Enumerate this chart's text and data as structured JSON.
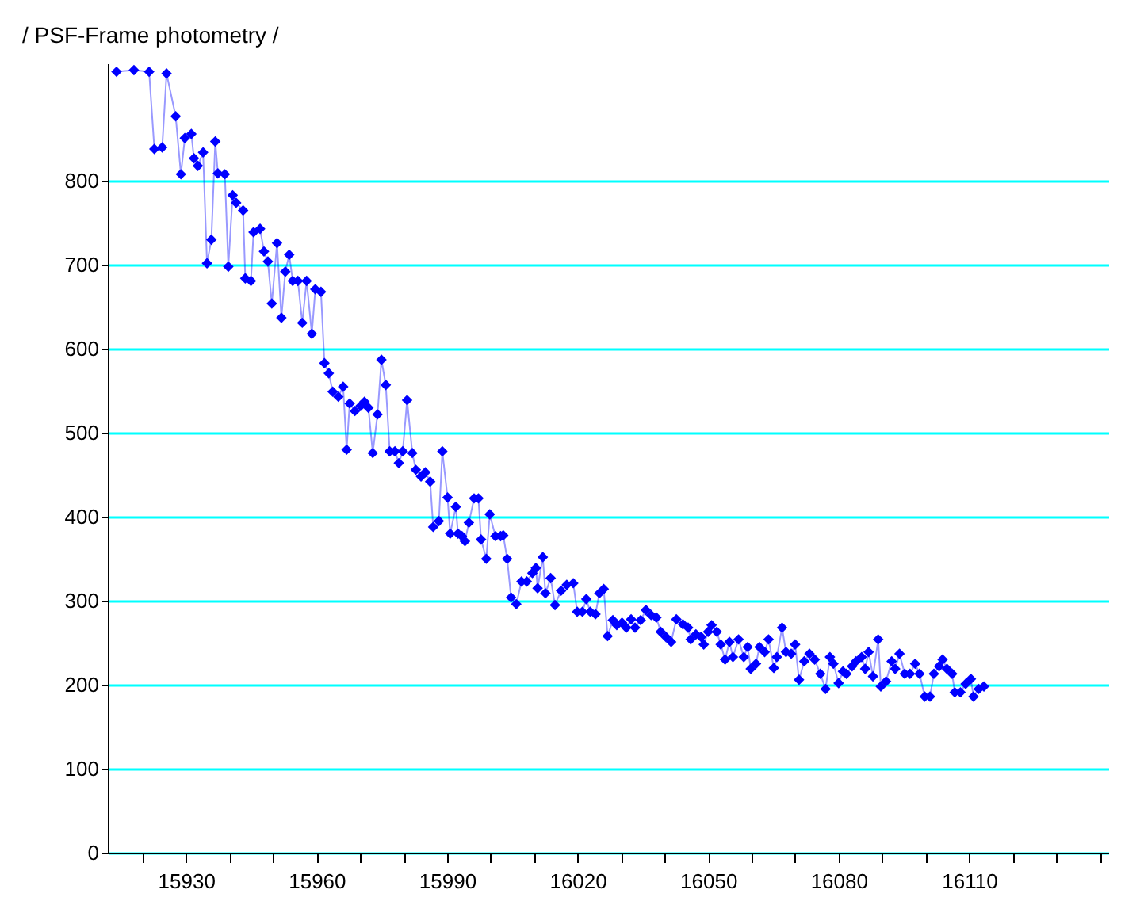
{
  "chart_data": {
    "type": "line",
    "title": "/ PSF-Frame photometry /",
    "xlim": [
      15912,
      16142
    ],
    "ylim": [
      0,
      940
    ],
    "xticks": [
      {
        "value": 15920,
        "label": null
      },
      15930,
      {
        "value": 15940,
        "label": null
      },
      {
        "value": 15950,
        "label": null
      },
      15960,
      {
        "value": 15970,
        "label": null
      },
      {
        "value": 15980,
        "label": null
      },
      15990,
      {
        "value": 16000,
        "label": null
      },
      {
        "value": 16010,
        "label": null
      },
      16020,
      {
        "value": 16030,
        "label": null
      },
      {
        "value": 16040,
        "label": null
      },
      16050,
      {
        "value": 16060,
        "label": null
      },
      {
        "value": 16070,
        "label": null
      },
      16080,
      {
        "value": 16090,
        "label": null
      },
      {
        "value": 16100,
        "label": null
      },
      16110,
      {
        "value": 16120,
        "label": null
      },
      {
        "value": 16130,
        "label": null
      },
      {
        "value": 16140,
        "label": null
      }
    ],
    "yticks": [
      0,
      100,
      200,
      300,
      400,
      500,
      600,
      700,
      800
    ],
    "grid": "y",
    "marker": "diamond",
    "line_style": "solid",
    "x": [
      15914,
      15918,
      15921.5,
      15922.7,
      15924.5,
      15925.5,
      15927.6,
      15928.8,
      15929.7,
      15931.2,
      15931.8,
      15932.7,
      15933.9,
      15934.8,
      15935.8,
      15936.7,
      15937.3,
      15938.9,
      15939.7,
      15940.7,
      15941.5,
      15943.1,
      15943.6,
      15944.9,
      15945.5,
      15947,
      15947.9,
      15948.8,
      15949.7,
      15950.9,
      15951.9,
      15952.8,
      15953.7,
      15954.5,
      15955.7,
      15956.7,
      15957.7,
      15958.9,
      15959.7,
      15961,
      15961.8,
      15962.8,
      15963.7,
      15965,
      15966.1,
      15966.9,
      15967.6,
      15968.8,
      15970.1,
      15971,
      15971.9,
      15972.9,
      15974,
      15974.9,
      15975.9,
      15976.8,
      15978,
      15978.9,
      15979.8,
      15980.8,
      15982,
      15982.8,
      15984,
      15985,
      15986.1,
      15986.8,
      15988.1,
      15988.9,
      15990.1,
      15990.7,
      15992,
      15992.5,
      15993.4,
      15994.1,
      15995,
      15996.2,
      15997.2,
      15997.8,
      15999,
      15999.8,
      16001.1,
      16002.3,
      16002.9,
      16003.8,
      16004.7,
      16005.9,
      16007.1,
      16008.3,
      16009.6,
      16010.4,
      16010.8,
      16012,
      16012.6,
      16013.8,
      16014.8,
      16016.2,
      16017.5,
      16019,
      16019.9,
      16021.1,
      16022,
      16022.9,
      16024.1,
      16025,
      16026,
      16026.9,
      16028.1,
      16029,
      16030.2,
      16031.2,
      16032.3,
      16033.2,
      16034.5,
      16035.7,
      16036.9,
      16038.1,
      16039.1,
      16040.3,
      16041.5,
      16042.7,
      16044.2,
      16045.4,
      16046,
      16047.2,
      16048.4,
      16049,
      16050,
      16050.8,
      16052,
      16052.9,
      16053.9,
      16054.9,
      16055.7,
      16057,
      16058.2,
      16059.1,
      16059.8,
      16061,
      16061.8,
      16063,
      16063.9,
      16065.1,
      16065.8,
      16067,
      16067.9,
      16069.1,
      16070,
      16070.9,
      16072.1,
      16073.3,
      16074.5,
      16075.8,
      16077,
      16078,
      16078.8,
      16080,
      16081,
      16081.8,
      16083.1,
      16084,
      16085.3,
      16086.1,
      16086.9,
      16087.9,
      16089.1,
      16089.7,
      16090.9,
      16092.2,
      16093,
      16094,
      16095.2,
      16096.4,
      16097.6,
      16098.6,
      16099.8,
      16101,
      16101.9,
      16103.1,
      16103.9,
      16104.9,
      16106.1,
      16106.7,
      16108,
      16109.2,
      16110.4,
      16111,
      16112.2,
      16113.4
    ],
    "series": [
      {
        "color": "#0000ff",
        "values": [
          930,
          932,
          930,
          838,
          840,
          928,
          877,
          808,
          851,
          856,
          827,
          818,
          834,
          702,
          730,
          847,
          809,
          808,
          698,
          783,
          774,
          765,
          684,
          681,
          739,
          743,
          716,
          704,
          654,
          726,
          637,
          692,
          712,
          681,
          681,
          631,
          681,
          618,
          671,
          668,
          583,
          571,
          549,
          543,
          555,
          480,
          535,
          526,
          532,
          537,
          530,
          476,
          522,
          587,
          557,
          478,
          478,
          464,
          478,
          539,
          476,
          456,
          448,
          453,
          442,
          388,
          395,
          478,
          423,
          380,
          412,
          380,
          377,
          371,
          393,
          422,
          422,
          373,
          350,
          403,
          377,
          377,
          378,
          350,
          304,
          296,
          323,
          323,
          333,
          339,
          315,
          352,
          309,
          327,
          295,
          312,
          319,
          321,
          287,
          287,
          302,
          287,
          284,
          309,
          314,
          258,
          277,
          271,
          274,
          268,
          278,
          268,
          277,
          289,
          283,
          280,
          263,
          257,
          251,
          278,
          272,
          268,
          254,
          260,
          257,
          248,
          263,
          271,
          263,
          248,
          230,
          251,
          233,
          254,
          233,
          245,
          219,
          225,
          245,
          239,
          254,
          220,
          233,
          268,
          239,
          237,
          248,
          206,
          228,
          237,
          230,
          213,
          195,
          233,
          225,
          202,
          216,
          213,
          222,
          228,
          233,
          219,
          239,
          210,
          254,
          198,
          204,
          228,
          219,
          237,
          213,
          213,
          225,
          213,
          186,
          186,
          213,
          222,
          230,
          219,
          213,
          191,
          191,
          201,
          207,
          186,
          195,
          198
        ]
      }
    ]
  }
}
